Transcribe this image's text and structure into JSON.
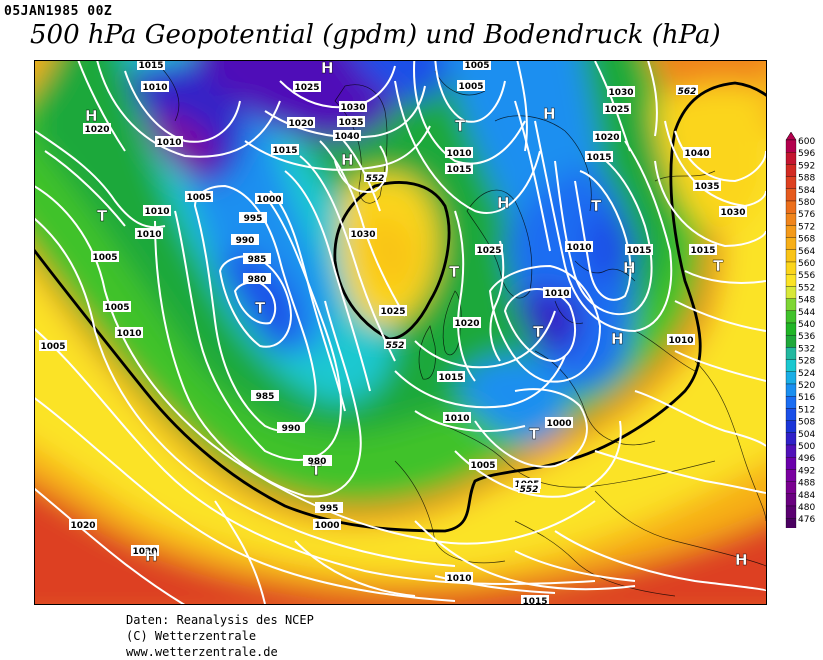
{
  "header": {
    "date": "05JAN1985 00Z",
    "title": "500 hPa Geopotential (gpdm) und Bodendruck (hPa)"
  },
  "legend": {
    "levels": [
      "600",
      "596",
      "592",
      "588",
      "584",
      "580",
      "576",
      "572",
      "568",
      "564",
      "560",
      "556",
      "552",
      "548",
      "544",
      "540",
      "536",
      "532",
      "528",
      "524",
      "520",
      "516",
      "512",
      "508",
      "504",
      "500",
      "496",
      "492",
      "488",
      "484",
      "480",
      "476"
    ],
    "colors": [
      "#b3004d",
      "#c41530",
      "#d22a22",
      "#dd4020",
      "#e55a1e",
      "#ec6f1c",
      "#f0851c",
      "#f49a1a",
      "#f7af18",
      "#f9c418",
      "#fbd51c",
      "#fbe326",
      "#d8e83a",
      "#7ed635",
      "#40c22c",
      "#20b526",
      "#1fa83a",
      "#22b8a0",
      "#1ac8d0",
      "#1aaee6",
      "#1a8ff0",
      "#1a6df2",
      "#1a4fe8",
      "#1a35d8",
      "#3020c8",
      "#5010b8",
      "#6a00ab",
      "#7a00a0",
      "#7a0090",
      "#6a0080",
      "#5a0070",
      "#4a0060"
    ]
  },
  "map": {
    "isobar_labels": [
      "1015",
      "1010",
      "1025",
      "1030",
      "1035",
      "1040",
      "1005",
      "1020",
      "1010",
      "1005",
      "1015",
      "1000",
      "995",
      "990",
      "985",
      "980",
      "1010",
      "1005",
      "1010",
      "1005",
      "1030",
      "1025",
      "1020",
      "1025",
      "1015",
      "1010",
      "1005",
      "1000",
      "995",
      "990",
      "985",
      "990",
      "980",
      "1000",
      "1005",
      "1005",
      "1010",
      "1015",
      "1020",
      "1005",
      "1005",
      "1010",
      "1030",
      "1025",
      "1020",
      "1015",
      "1010",
      "1015",
      "1040",
      "1035",
      "1030",
      "1015",
      "1010",
      "1010",
      "1020",
      "1020",
      "1010",
      "1015"
    ],
    "contour_labels": [
      "552",
      "552",
      "562",
      "552"
    ],
    "pressure_centers": [
      {
        "label": "H"
      },
      {
        "label": "H"
      },
      {
        "label": "T"
      },
      {
        "label": "H"
      },
      {
        "label": "T"
      },
      {
        "label": "T"
      },
      {
        "label": "H"
      },
      {
        "label": "T"
      },
      {
        "label": "H"
      },
      {
        "label": "T"
      },
      {
        "label": "T"
      },
      {
        "label": "T"
      },
      {
        "label": "H"
      },
      {
        "label": "T"
      },
      {
        "label": "H"
      },
      {
        "label": "H"
      },
      {
        "label": "H"
      },
      {
        "label": "T"
      }
    ]
  },
  "credits": {
    "line1": "Daten: Reanalysis des NCEP",
    "line2": "(C) Wetterzentrale",
    "line3": "www.wetterzentrale.de"
  }
}
